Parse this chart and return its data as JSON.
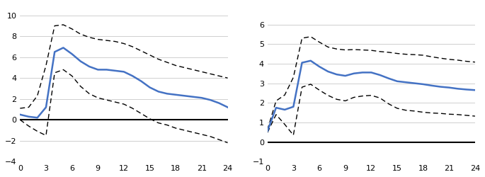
{
  "x": [
    0,
    1,
    2,
    3,
    4,
    5,
    6,
    7,
    8,
    9,
    10,
    11,
    12,
    13,
    14,
    15,
    16,
    17,
    18,
    19,
    20,
    21,
    22,
    23,
    24
  ],
  "left_center": [
    0.5,
    0.3,
    0.2,
    1.2,
    6.5,
    6.9,
    6.3,
    5.6,
    5.1,
    4.8,
    4.8,
    4.7,
    4.6,
    4.2,
    3.7,
    3.1,
    2.7,
    2.5,
    2.4,
    2.3,
    2.2,
    2.1,
    1.9,
    1.6,
    1.2
  ],
  "left_upper": [
    1.1,
    1.2,
    2.3,
    5.2,
    9.0,
    9.1,
    8.7,
    8.2,
    7.9,
    7.7,
    7.6,
    7.5,
    7.3,
    7.0,
    6.6,
    6.2,
    5.8,
    5.5,
    5.2,
    5.0,
    4.8,
    4.6,
    4.4,
    4.2,
    4.0
  ],
  "left_lower": [
    0.0,
    -0.6,
    -1.1,
    -1.5,
    4.5,
    4.8,
    4.2,
    3.2,
    2.5,
    2.1,
    1.9,
    1.7,
    1.5,
    1.1,
    0.6,
    0.1,
    -0.3,
    -0.5,
    -0.8,
    -1.0,
    -1.2,
    -1.4,
    -1.6,
    -1.9,
    -2.2
  ],
  "right_center": [
    0.55,
    1.75,
    1.65,
    1.8,
    4.05,
    4.15,
    3.85,
    3.6,
    3.45,
    3.38,
    3.5,
    3.55,
    3.55,
    3.42,
    3.25,
    3.1,
    3.05,
    3.0,
    2.95,
    2.88,
    2.82,
    2.78,
    2.72,
    2.68,
    2.65
  ],
  "right_upper": [
    0.62,
    2.1,
    2.4,
    3.3,
    5.3,
    5.38,
    5.1,
    4.85,
    4.75,
    4.7,
    4.72,
    4.7,
    4.68,
    4.62,
    4.58,
    4.52,
    4.48,
    4.46,
    4.43,
    4.35,
    4.28,
    4.22,
    4.18,
    4.12,
    4.08
  ],
  "right_lower": [
    0.48,
    1.4,
    0.9,
    0.35,
    2.8,
    2.95,
    2.65,
    2.38,
    2.18,
    2.1,
    2.28,
    2.35,
    2.38,
    2.25,
    1.95,
    1.72,
    1.62,
    1.58,
    1.52,
    1.48,
    1.46,
    1.42,
    1.4,
    1.36,
    1.32
  ],
  "left_ylim": [
    -4,
    11
  ],
  "left_yticks": [
    -4,
    -2,
    0,
    2,
    4,
    6,
    8,
    10
  ],
  "right_ylim": [
    -1,
    7
  ],
  "right_yticks": [
    -1,
    0,
    1,
    2,
    3,
    4,
    5,
    6
  ],
  "xticks": [
    0,
    3,
    6,
    9,
    12,
    15,
    18,
    21,
    24
  ],
  "line_color": "#4472C4",
  "dash_color": "#000000",
  "zero_line_color": "#000000",
  "background_color": "#ffffff",
  "grid_color": "#c8c8c8"
}
